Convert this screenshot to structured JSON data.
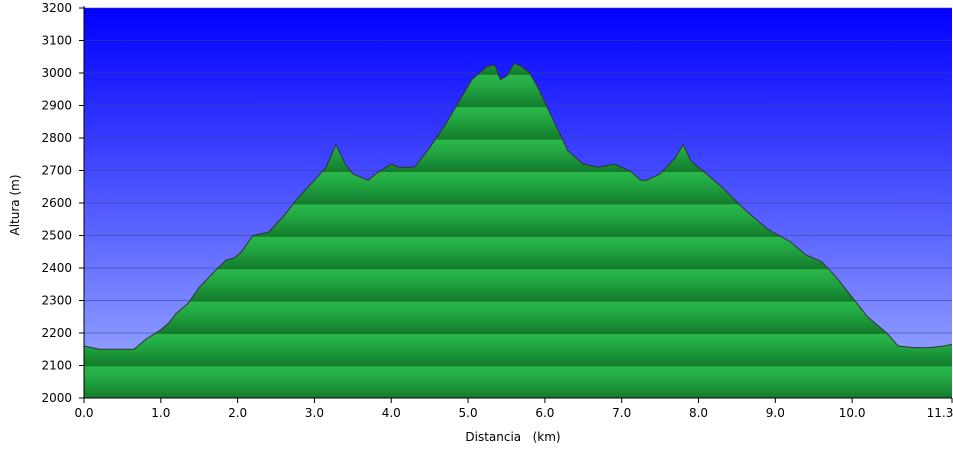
{
  "chart_data": {
    "type": "area",
    "title": "",
    "xlabel": "Distancia   (km)",
    "ylabel": "Altura (m)",
    "xlim": [
      0,
      11.3
    ],
    "ylim": [
      2000,
      3200
    ],
    "x_ticks": [
      0.0,
      1.0,
      2.0,
      3.0,
      4.0,
      5.0,
      6.0,
      7.0,
      8.0,
      9.0,
      10.0,
      11.3
    ],
    "x_tick_labels": [
      "0.0",
      "1.0",
      "2.0",
      "3.0",
      "4.0",
      "5.0",
      "6.0",
      "7.0",
      "8.0",
      "9.0",
      "10.0",
      "11.3"
    ],
    "y_ticks": [
      2000,
      2100,
      2200,
      2300,
      2400,
      2500,
      2600,
      2700,
      2800,
      2900,
      3000,
      3100,
      3200
    ],
    "y_tick_labels": [
      "2000",
      "2100",
      "2200",
      "2300",
      "2400",
      "2500",
      "2600",
      "2700",
      "2800",
      "2900",
      "3000",
      "3100",
      "3200"
    ],
    "grid": "horizontal",
    "legend": "none",
    "colors": {
      "sky_top": "#0000ff",
      "sky_bottom": "#9aaaff",
      "fill_light": "#2ab84a",
      "fill_dark": "#167a2e",
      "outline": "#333333"
    },
    "series": [
      {
        "x": [
          0.0,
          0.2,
          0.4,
          0.65,
          0.8,
          1.0,
          1.1,
          1.2,
          1.35,
          1.5,
          1.7,
          1.85,
          1.95,
          2.05,
          2.2,
          2.4,
          2.6,
          2.8,
          3.0,
          3.15,
          3.28,
          3.32,
          3.4,
          3.5,
          3.7,
          3.8,
          4.0,
          4.1,
          4.3,
          4.5,
          4.7,
          4.9,
          5.05,
          5.25,
          5.35,
          5.42,
          5.5,
          5.6,
          5.7,
          5.8,
          5.9,
          6.1,
          6.3,
          6.5,
          6.7,
          6.9,
          7.1,
          7.25,
          7.32,
          7.5,
          7.7,
          7.8,
          7.9,
          8.05,
          8.3,
          8.6,
          8.9,
          9.2,
          9.4,
          9.6,
          9.8,
          10.0,
          10.2,
          10.45,
          10.6,
          10.8,
          11.0,
          11.2,
          11.3
        ],
        "y": [
          2160,
          2150,
          2150,
          2150,
          2180,
          2210,
          2230,
          2260,
          2290,
          2340,
          2390,
          2425,
          2430,
          2450,
          2500,
          2510,
          2560,
          2620,
          2670,
          2710,
          2780,
          2760,
          2720,
          2690,
          2670,
          2690,
          2720,
          2710,
          2710,
          2770,
          2840,
          2920,
          2980,
          3020,
          3025,
          2980,
          2990,
          3030,
          3020,
          3000,
          2960,
          2860,
          2760,
          2720,
          2710,
          2720,
          2700,
          2670,
          2670,
          2690,
          2740,
          2780,
          2730,
          2700,
          2650,
          2580,
          2520,
          2480,
          2440,
          2420,
          2370,
          2310,
          2250,
          2200,
          2160,
          2155,
          2155,
          2160,
          2165
        ]
      }
    ]
  }
}
